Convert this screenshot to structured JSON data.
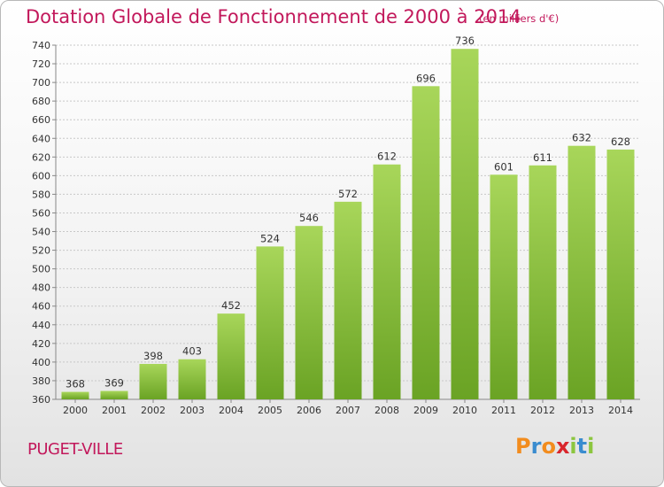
{
  "title": "Dotation Globale de Fonctionnement de 2000 à 2014",
  "subtitle": "(en milliers d'€)",
  "commune": "PUGET-VILLE",
  "logo": {
    "letters": [
      "P",
      "r",
      "o",
      "x",
      "i",
      "t",
      "i"
    ],
    "colors": [
      "#f28c1e",
      "#3a8ccf",
      "#f28c1e",
      "#d9262c",
      "#8cc63f",
      "#3a8ccf",
      "#8cc63f"
    ]
  },
  "colors": {
    "bar_light": "#a8d65a",
    "bar_dark": "#6aa324",
    "grid": "#c8c8c8",
    "axis_text": "#333333",
    "title": "#c2185b"
  },
  "chart_data": {
    "type": "bar",
    "categories": [
      "2000",
      "2001",
      "2002",
      "2003",
      "2004",
      "2005",
      "2006",
      "2007",
      "2008",
      "2009",
      "2010",
      "2011",
      "2012",
      "2013",
      "2014"
    ],
    "values": [
      368,
      369,
      398,
      403,
      452,
      524,
      546,
      572,
      612,
      696,
      736,
      601,
      611,
      632,
      628
    ],
    "ylim": [
      360,
      740
    ],
    "ytick_step": 20,
    "grid": true
  }
}
